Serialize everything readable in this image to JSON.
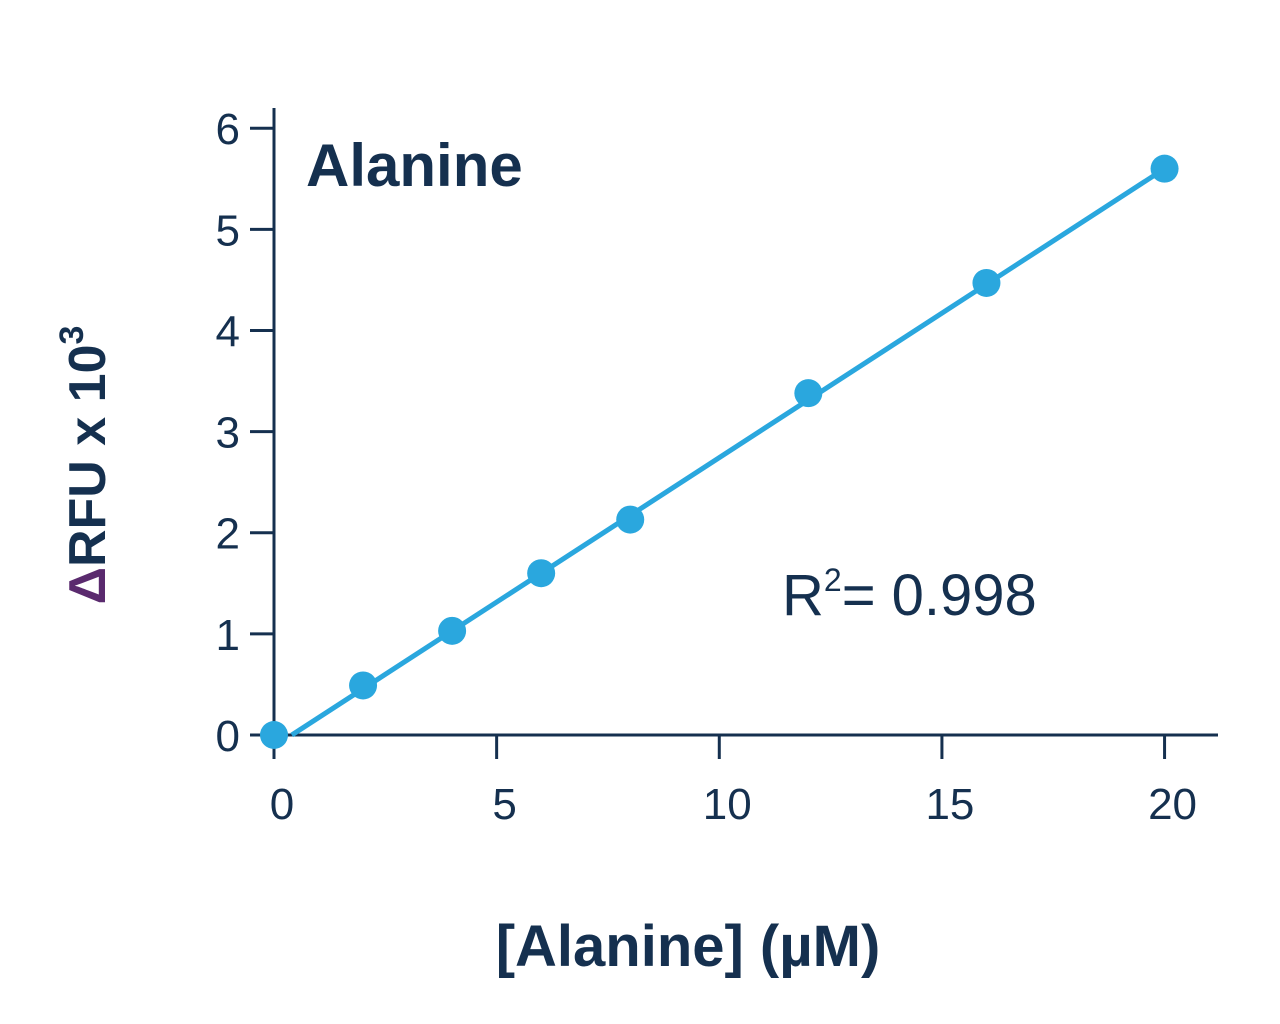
{
  "chart_data": {
    "type": "scatter",
    "title": "Alanine",
    "x_label": "[Alanine] (µM)",
    "y_label": {
      "prefix": "Δ",
      "text": "RFU x 10",
      "superscript": "3"
    },
    "annotation": {
      "text": "R",
      "superscript": "2",
      "rest": "= 0.998"
    },
    "x": [
      0,
      2,
      4,
      6,
      8,
      12,
      16,
      20
    ],
    "values": [
      0,
      0.49,
      1.03,
      1.6,
      2.13,
      3.38,
      4.47,
      5.6
    ],
    "fit_line": {
      "x": [
        0.4,
        20
      ],
      "y": [
        0,
        5.6
      ]
    },
    "color": "#2aa7de",
    "xlim": [
      0,
      21.2
    ],
    "xticks": [
      0,
      5,
      10,
      15,
      20
    ],
    "ylim": [
      0,
      6.2
    ],
    "yticks": [
      0,
      1,
      2,
      3,
      4,
      5,
      6
    ],
    "grid": false
  }
}
